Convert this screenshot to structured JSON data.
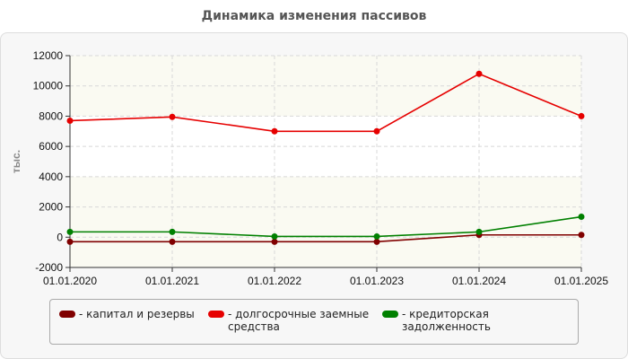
{
  "chart_data": {
    "type": "line",
    "title": "Динамика изменения пассивов",
    "ylabel": "тыс.",
    "xlabel": "",
    "categories": [
      "01.01.2020",
      "01.01.2021",
      "01.01.2022",
      "01.01.2023",
      "01.01.2024",
      "01.01.2025"
    ],
    "ylim": [
      -2000,
      12000
    ],
    "yticks": [
      -2000,
      0,
      2000,
      4000,
      6000,
      8000,
      10000,
      12000
    ],
    "grid": true,
    "legend_position": "bottom",
    "series": [
      {
        "name": "- капитал и резервы",
        "color": "#800000",
        "values": [
          -300,
          -300,
          -300,
          -300,
          150,
          150
        ]
      },
      {
        "name": "- долгосрочные заемные средства",
        "color": "#e60000",
        "values": [
          7700,
          7950,
          7000,
          7000,
          10800,
          8000
        ]
      },
      {
        "name": "- кредиторская задолженность",
        "color": "#008000",
        "values": [
          350,
          350,
          50,
          50,
          350,
          1350
        ]
      }
    ]
  }
}
